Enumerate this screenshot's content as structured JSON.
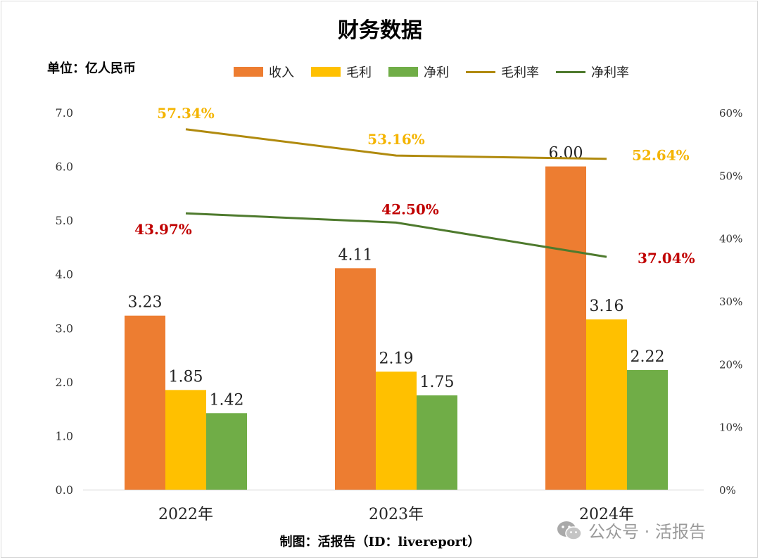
{
  "title": "财务数据",
  "unit_label": "单位：亿人民币",
  "source": "制图：活报告（ID：livereport）",
  "watermark": {
    "text": "公众号 · 活报告",
    "icon": "wechat-icon"
  },
  "colors": {
    "revenue": "#ED7D31",
    "gross_profit": "#FFC000",
    "net_profit": "#70AD47",
    "gross_margin": "#B08A0E",
    "net_margin": "#4E7A2D",
    "gross_margin_label": "#F4B400",
    "net_margin_label": "#C00000"
  },
  "chart_data": {
    "type": "bar",
    "categories": [
      "2022年",
      "2023年",
      "2024年"
    ],
    "series": [
      {
        "name": "收入",
        "type": "bar",
        "axis": "left",
        "values": [
          3.23,
          4.11,
          6.0
        ],
        "labels": [
          "3.23",
          "4.11",
          "6.00"
        ]
      },
      {
        "name": "毛利",
        "type": "bar",
        "axis": "left",
        "values": [
          1.85,
          2.19,
          3.16
        ],
        "labels": [
          "1.85",
          "2.19",
          "3.16"
        ]
      },
      {
        "name": "净利",
        "type": "bar",
        "axis": "left",
        "values": [
          1.42,
          1.75,
          2.22
        ],
        "labels": [
          "1.42",
          "1.75",
          "2.22"
        ]
      },
      {
        "name": "毛利率",
        "type": "line",
        "axis": "right",
        "values": [
          57.34,
          53.16,
          52.64
        ],
        "labels": [
          "57.34%",
          "53.16%",
          "52.64%"
        ]
      },
      {
        "name": "净利率",
        "type": "line",
        "axis": "right",
        "values": [
          43.97,
          42.5,
          37.04
        ],
        "labels": [
          "43.97%",
          "42.50%",
          "37.04%"
        ]
      }
    ],
    "y_left": {
      "min": 0,
      "max": 7,
      "ticks": [
        "0.0",
        "1.0",
        "2.0",
        "3.0",
        "4.0",
        "5.0",
        "6.0",
        "7.0"
      ]
    },
    "y_right": {
      "min": 0,
      "max": 60,
      "ticks": [
        "0%",
        "10%",
        "20%",
        "30%",
        "40%",
        "50%",
        "60%"
      ]
    },
    "grid": false,
    "legend": "top"
  }
}
